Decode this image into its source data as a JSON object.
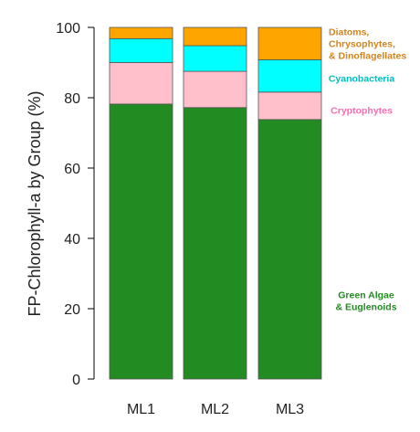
{
  "chart_data": {
    "type": "bar",
    "stacked": true,
    "categories": [
      "ML1",
      "ML2",
      "ML3"
    ],
    "ylabel": "FP-Chlorophyll-a by Group (%)",
    "xlabel": "",
    "ylim": [
      0,
      100
    ],
    "yticks": [
      0,
      20,
      40,
      60,
      80,
      100
    ],
    "legend_placement": "right",
    "series": [
      {
        "name": "Green Algae & Euglenoids",
        "label_lines": [
          "Green Algae",
          "& Euglenoids"
        ],
        "color": "#228B22",
        "values": [
          78.2,
          77.2,
          73.8
        ]
      },
      {
        "name": "Cryptophytes",
        "label_lines": [
          "Cryptophytes"
        ],
        "color": "#FFC0CB",
        "values": [
          11.8,
          10.3,
          7.8
        ]
      },
      {
        "name": "Cyanobacteria",
        "label_lines": [
          "Cyanobacteria"
        ],
        "color": "#00FFFF",
        "values": [
          6.8,
          7.3,
          9.2
        ]
      },
      {
        "name": "Diatoms, Chrysophytes, & Dinoflagellates",
        "label_lines": [
          "Diatoms,",
          "Chrysophytes,",
          "& Dinoflagellates"
        ],
        "color": "#FFA500",
        "values": [
          3.2,
          5.2,
          9.2
        ]
      }
    ],
    "label_colors": {
      "Green Algae & Euglenoids": "#228B22",
      "Cryptophytes": "#FF69B4",
      "Cyanobacteria": "#00BFBF",
      "Diatoms, Chrysophytes, & Dinoflagellates": "#D2841E"
    }
  }
}
